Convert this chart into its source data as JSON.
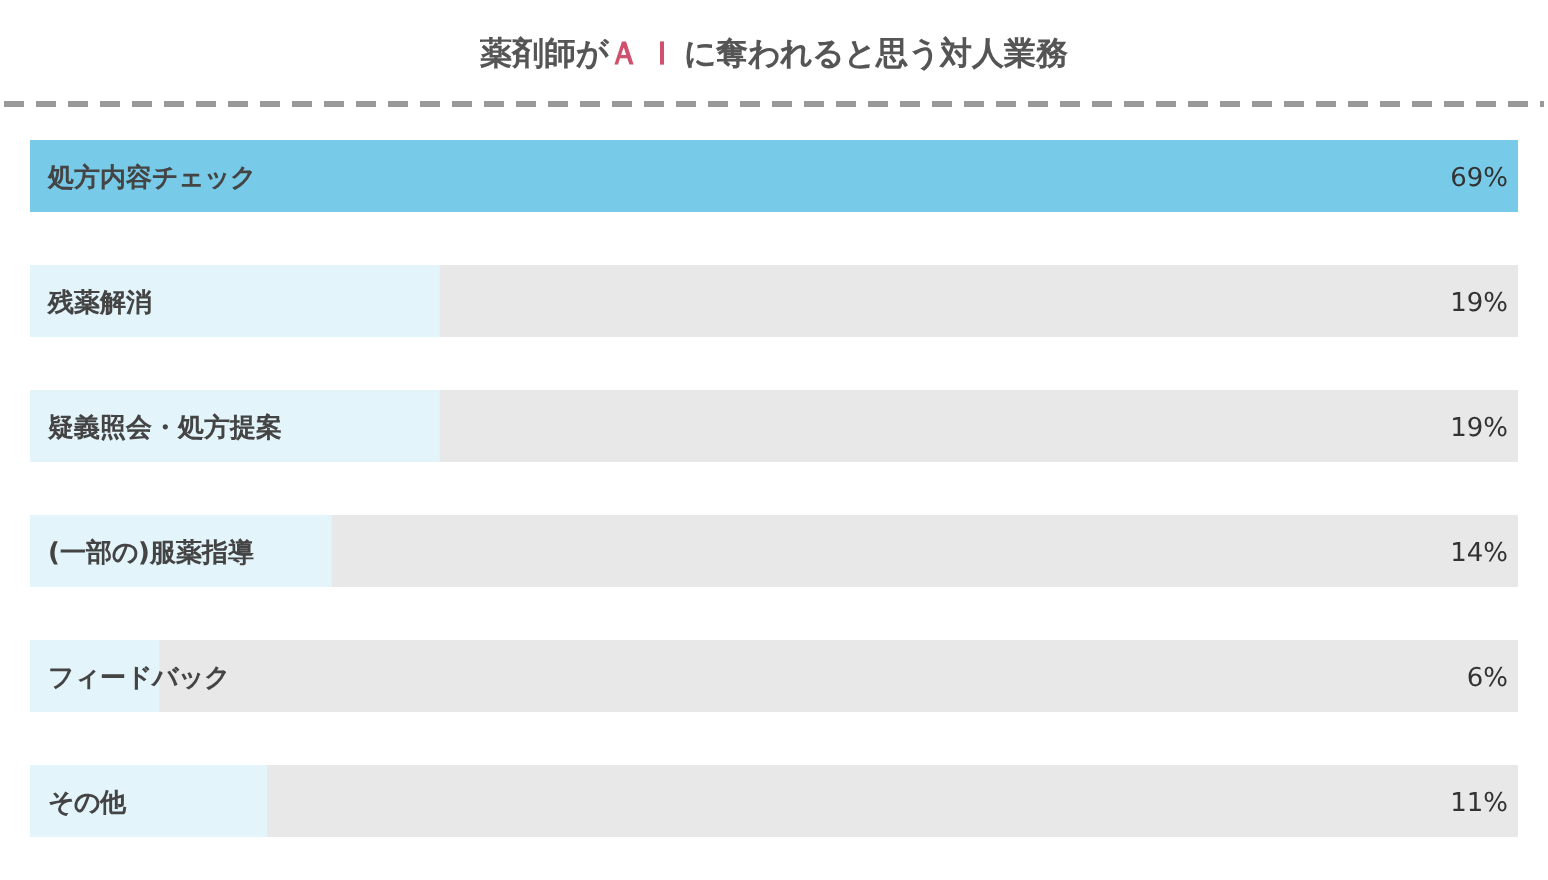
{
  "chart_data": {
    "type": "bar",
    "orientation": "horizontal",
    "title": "薬剤師が**ＡＩ**に奪われると思う対人業務",
    "categories": [
      "処方内容チェック",
      "残薬解消",
      "疑義照会・処方提案",
      "(一部の)服薬指導",
      "フィードバック",
      "その他"
    ],
    "values": [
      69,
      19,
      19,
      14,
      6,
      11
    ],
    "value_labels": [
      "69%",
      "19%",
      "19%",
      "14%",
      "6%",
      "11%"
    ],
    "colors": [
      "#78cbe8",
      "#e3f4fa",
      "#e3f4fa",
      "#e3f4fa",
      "#e3f4fa",
      "#e3f4fa"
    ]
  }
}
